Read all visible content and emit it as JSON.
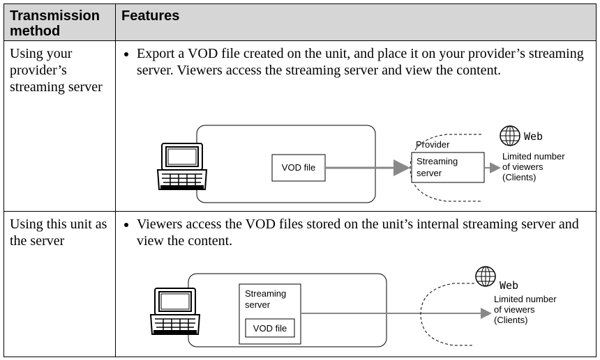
{
  "table": {
    "header": [
      "Transmission method",
      "Features"
    ],
    "rows": [
      {
        "method": "Using your provider’s streaming server",
        "feature": "Export a VOD file created on the unit, and place it on your provider’s streaming server. Viewers access the streaming server and view the content.",
        "diagram": {
          "vod_file": "VOD file",
          "provider": "Provider",
          "streaming_server": [
            "Streaming",
            "server"
          ],
          "web": "Web",
          "viewers": [
            "Limited number",
            "of viewers",
            "(Clients)"
          ]
        }
      },
      {
        "method": "Using this unit as the server",
        "feature": "Viewers access the VOD files stored on the unit’s internal streaming server and view the content.",
        "diagram": {
          "streaming_server": [
            "Streaming",
            "server"
          ],
          "vod_file": "VOD file",
          "web": "Web",
          "viewers": [
            "Limited number",
            "of viewers",
            "(Clients)"
          ]
        }
      }
    ]
  }
}
